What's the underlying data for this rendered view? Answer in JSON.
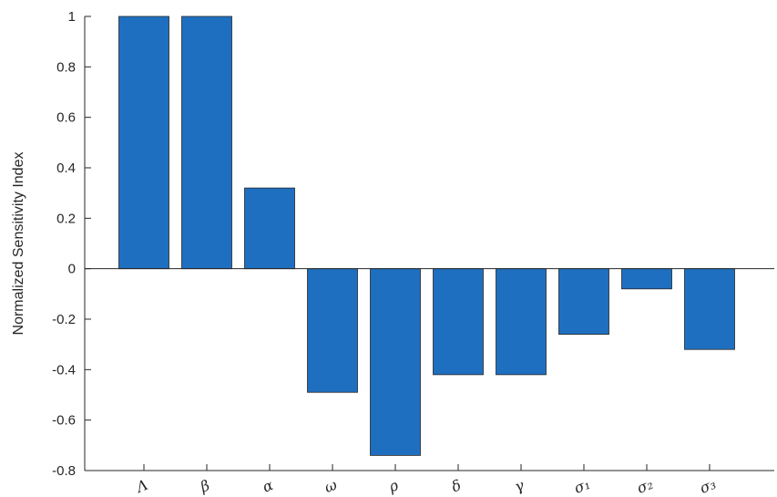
{
  "chart_data": {
    "type": "bar",
    "title": "",
    "xlabel": "",
    "ylabel": "Normalized Sensitivity Index",
    "categories": [
      "Λ",
      "β",
      "α",
      "ω",
      "ρ",
      "δ",
      "γ",
      "σ₁",
      "σ₂",
      "σ₃"
    ],
    "values": [
      1.0,
      1.0,
      0.32,
      -0.49,
      -0.74,
      -0.42,
      -0.42,
      -0.26,
      -0.08,
      -0.32
    ],
    "ylim": [
      -0.8,
      1
    ],
    "yticks": [
      1,
      0.8,
      0.6,
      0.4,
      0.2,
      0,
      -0.2,
      -0.4,
      -0.6,
      -0.8
    ],
    "ytick_labels": [
      "1",
      "0.8",
      "0.6",
      "0.4",
      "0.2",
      "0",
      "-0.2",
      "-0.4",
      "-0.6",
      "-0.8"
    ],
    "grid": false,
    "legend": "none",
    "bar_color": "#1f6fc0",
    "bar_edge_color": "#262626"
  }
}
